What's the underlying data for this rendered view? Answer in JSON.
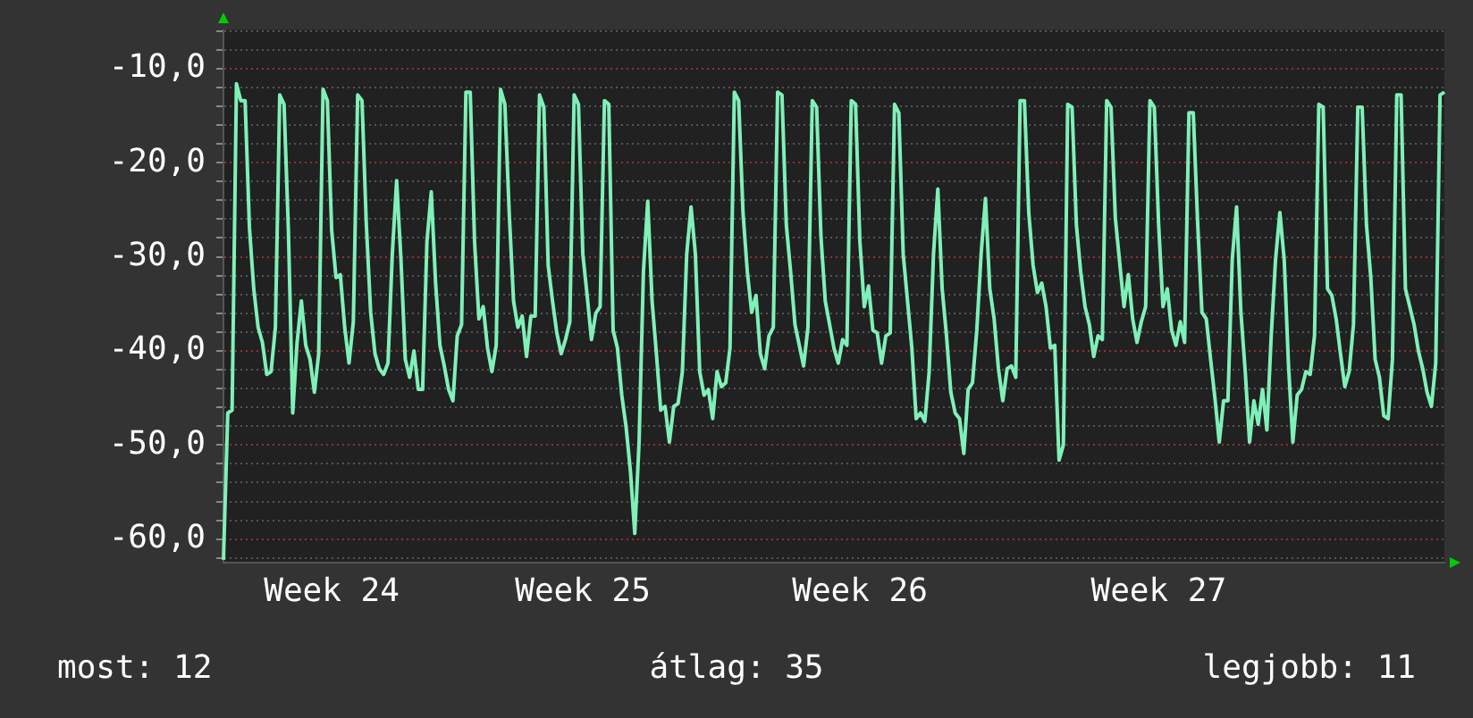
{
  "chart_data": {
    "type": "line",
    "marker": "none",
    "line_style": "solid",
    "grid": "y",
    "legend": false,
    "categories": [
      null,
      null,
      null,
      null,
      null,
      null,
      null,
      null,
      null,
      null,
      null,
      null,
      null,
      null,
      null,
      null,
      null,
      null,
      null,
      null,
      null,
      null,
      null,
      null,
      null,
      "Week 24",
      null,
      null,
      null,
      null,
      null,
      null,
      null,
      null,
      null,
      null,
      null,
      null,
      null,
      null,
      null,
      null,
      null,
      null,
      null,
      null,
      null,
      null,
      null,
      null,
      null,
      null,
      null,
      null,
      null,
      null,
      null,
      null,
      null,
      null,
      null,
      null,
      null,
      null,
      null,
      null,
      null,
      null,
      null,
      null,
      null,
      null,
      null,
      null,
      null,
      null,
      null,
      null,
      null,
      null,
      null,
      null,
      null,
      "Week 25",
      null,
      null,
      null,
      null,
      null,
      null,
      null,
      null,
      null,
      null,
      null,
      null,
      null,
      null,
      null,
      null,
      null,
      null,
      null,
      null,
      null,
      null,
      null,
      null,
      null,
      null,
      null,
      null,
      null,
      null,
      null,
      null,
      null,
      null,
      null,
      null,
      null,
      null,
      null,
      null,
      null,
      null,
      null,
      null,
      null,
      null,
      null,
      null,
      null,
      null,
      null,
      null,
      null,
      null,
      null,
      null,
      null,
      null,
      null,
      null,
      null,
      null,
      null,
      "Week 26",
      null,
      null,
      null,
      null,
      null,
      null,
      null,
      null,
      null,
      null,
      null,
      null,
      null,
      null,
      null,
      null,
      null,
      null,
      null,
      null,
      null,
      null,
      null,
      null,
      null,
      null,
      null,
      null,
      null,
      null,
      null,
      null,
      null,
      null,
      null,
      null,
      null,
      null,
      null,
      null,
      null,
      null,
      null,
      null,
      null,
      null,
      null,
      null,
      null,
      null,
      null,
      null,
      null,
      null,
      null,
      null,
      null,
      null,
      null,
      null,
      null,
      null,
      null,
      null,
      null,
      null,
      null,
      null,
      "Week 27",
      null,
      null,
      null,
      null,
      null,
      null,
      null,
      null,
      null,
      null,
      null,
      null,
      null,
      null,
      null,
      null,
      null,
      null,
      null,
      null,
      null,
      null,
      null,
      null,
      null,
      null,
      null,
      null,
      null,
      null,
      null,
      null,
      null,
      null,
      null,
      null,
      null,
      null,
      null,
      null,
      null,
      null,
      null,
      null,
      null,
      null,
      null,
      null,
      null,
      null,
      null,
      null,
      null,
      null,
      null,
      null,
      null,
      null,
      null,
      null,
      null,
      null,
      null,
      null,
      null,
      null
    ],
    "ylim": [
      -62.5,
      -5.9
    ],
    "yticks": [
      {
        "value": -62,
        "label": null
      },
      {
        "value": -60,
        "label": "-60,0"
      },
      {
        "value": -58,
        "label": null
      },
      {
        "value": -56,
        "label": null
      },
      {
        "value": -54,
        "label": null
      },
      {
        "value": -52,
        "label": null
      },
      {
        "value": -50,
        "label": "-50,0"
      },
      {
        "value": -48,
        "label": null
      },
      {
        "value": -46,
        "label": null
      },
      {
        "value": -44,
        "label": null
      },
      {
        "value": -42,
        "label": null
      },
      {
        "value": -40,
        "label": "-40,0"
      },
      {
        "value": -38,
        "label": null
      },
      {
        "value": -36,
        "label": null
      },
      {
        "value": -34,
        "label": null
      },
      {
        "value": -32,
        "label": null
      },
      {
        "value": -30,
        "label": "-30,0"
      },
      {
        "value": -28,
        "label": null
      },
      {
        "value": -26,
        "label": null
      },
      {
        "value": -24,
        "label": null
      },
      {
        "value": -22,
        "label": null
      },
      {
        "value": -20,
        "label": "-20,0"
      },
      {
        "value": -18,
        "label": null
      },
      {
        "value": -16,
        "label": null
      },
      {
        "value": -14,
        "label": null
      },
      {
        "value": -12,
        "label": null
      },
      {
        "value": -10,
        "label": "-10,0"
      },
      {
        "value": -8,
        "label": null
      },
      {
        "value": -6,
        "label": null
      }
    ],
    "annotations": [
      "most: 12",
      "átlag: 35",
      "legjobb: 11"
    ],
    "series": [
      {
        "color": "#7ff0b8",
        "values": [
          -62.2,
          -46.6,
          -46.3,
          -11.6,
          -13.4,
          -13.4,
          -26.9,
          -33.4,
          -37.5,
          -39.1,
          -42.5,
          -42.2,
          -37.5,
          -12.8,
          -13.8,
          -27.2,
          -46.6,
          -39.1,
          -34.7,
          -39.4,
          -40.9,
          -44.4,
          -40.3,
          -12.2,
          -13.4,
          -27.2,
          -32.2,
          -31.9,
          -37.5,
          -41.3,
          -36.9,
          -12.8,
          -13.4,
          -26.6,
          -35.9,
          -40.3,
          -41.9,
          -42.5,
          -41.3,
          -29.7,
          -21.9,
          -30.3,
          -40.9,
          -42.8,
          -40,
          -44.1,
          -44.1,
          -28.4,
          -23.1,
          -32.8,
          -39.4,
          -41.6,
          -44.1,
          -45.3,
          -38.4,
          -37.2,
          -12.5,
          -12.5,
          -28.4,
          -36.6,
          -35.3,
          -39.7,
          -42.2,
          -39.4,
          -12.2,
          -13.8,
          -25.3,
          -34.7,
          -37.5,
          -36.3,
          -40.6,
          -36.3,
          -36.3,
          -12.8,
          -14.1,
          -30.9,
          -34.7,
          -38.1,
          -40.3,
          -38.8,
          -36.9,
          -12.8,
          -13.8,
          -29.7,
          -34.1,
          -38.8,
          -36,
          -35.3,
          -13.4,
          -13.8,
          -37.8,
          -39.7,
          -44.7,
          -48.1,
          -52.8,
          -59.4,
          -49.7,
          -31.6,
          -24.1,
          -34.7,
          -40.3,
          -46.3,
          -45.9,
          -49.7,
          -45.9,
          -45.6,
          -42.2,
          -29.7,
          -24.7,
          -29.7,
          -42.2,
          -44.7,
          -44.1,
          -47.2,
          -42.2,
          -43.8,
          -43.4,
          -39.7,
          -12.5,
          -13.4,
          -25.3,
          -31.6,
          -35.9,
          -34.1,
          -40.3,
          -41.9,
          -38.4,
          -37.5,
          -12.5,
          -12.8,
          -26.6,
          -31.6,
          -37.2,
          -39.4,
          -41.6,
          -37.5,
          -13.4,
          -14.1,
          -27.8,
          -34.7,
          -37.2,
          -39.7,
          -41.3,
          -38.8,
          -39.4,
          -13.4,
          -13.8,
          -28.4,
          -35.3,
          -33.1,
          -37.8,
          -38.1,
          -41.3,
          -38.4,
          -38.1,
          -13.8,
          -14.7,
          -29.7,
          -34.7,
          -39.7,
          -47.2,
          -46.6,
          -47.5,
          -42.2,
          -29.7,
          -22.8,
          -33.4,
          -38.4,
          -44.4,
          -46.6,
          -47.2,
          -50.9,
          -44.1,
          -43.4,
          -37.8,
          -29.7,
          -23.8,
          -33.4,
          -36.6,
          -41.9,
          -45.3,
          -41.9,
          -41.6,
          -42.8,
          -13.4,
          -13.4,
          -25.3,
          -30.9,
          -33.8,
          -32.8,
          -35.3,
          -39.7,
          -39.4,
          -51.6,
          -50,
          -13.8,
          -14.1,
          -26.6,
          -31.6,
          -35.3,
          -37.2,
          -40.6,
          -38.4,
          -38.8,
          -13.4,
          -14.1,
          -25.9,
          -30.6,
          -35.3,
          -31.9,
          -36.6,
          -39.1,
          -36.9,
          -35.3,
          -13.4,
          -14.1,
          -26.6,
          -35.3,
          -33.4,
          -37.8,
          -39.4,
          -36.9,
          -39.1,
          -14.7,
          -14.7,
          -26.3,
          -35.9,
          -36.6,
          -40.9,
          -45,
          -49.7,
          -45.3,
          -45.3,
          -30.3,
          -24.7,
          -35.9,
          -42.2,
          -49.7,
          -45.3,
          -47.8,
          -44.1,
          -48.4,
          -38.4,
          -30.3,
          -25.3,
          -30.3,
          -41.6,
          -49.7,
          -44.7,
          -44.1,
          -42.2,
          -42.5,
          -38.4,
          -13.8,
          -14.1,
          -33.4,
          -34.1,
          -36.6,
          -40.3,
          -43.8,
          -42.2,
          -37.2,
          -14.1,
          -14.1,
          -26.6,
          -32.2,
          -40.9,
          -42.8,
          -46.9,
          -47.2,
          -40.9,
          -12.8,
          -12.8,
          -33.4,
          -35.3,
          -37.2,
          -40,
          -41.9,
          -44.4,
          -45.9,
          -41.3,
          -12.8,
          -12.5
        ]
      }
    ]
  }
}
